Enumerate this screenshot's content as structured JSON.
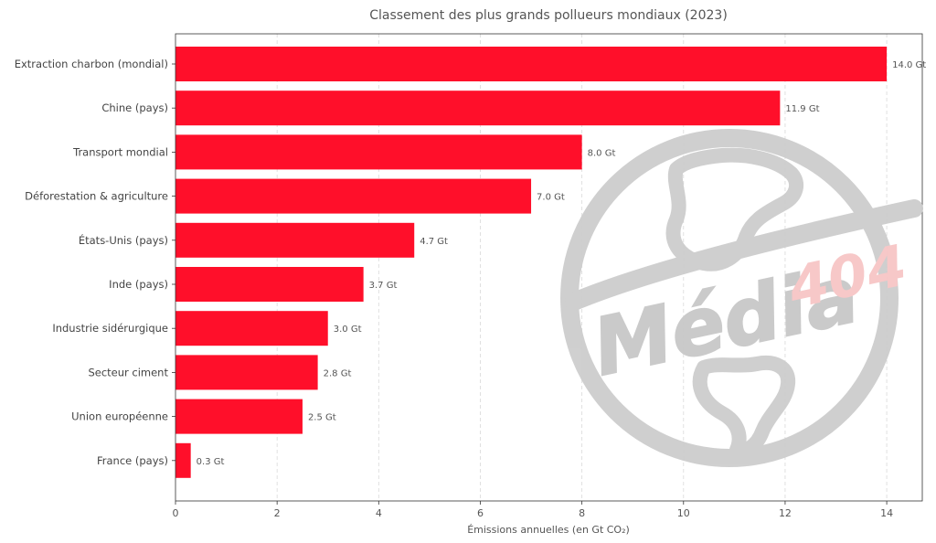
{
  "chart_data": {
    "type": "bar",
    "orientation": "horizontal",
    "title": "Classement des plus grands pollueurs mondiaux (2023)",
    "xlabel": "Émissions annuelles (en Gt CO₂)",
    "ylabel": "",
    "xlim": [
      0,
      14.7
    ],
    "xticks": [
      0,
      2,
      4,
      6,
      8,
      10,
      12,
      14
    ],
    "grid": "x-dashed",
    "bar_color": "#ff0f2a",
    "value_unit": "Gt",
    "categories": [
      "Extraction charbon (mondial)",
      "Chine (pays)",
      "Transport mondial",
      "Déforestation & agriculture",
      "États-Unis (pays)",
      "Inde (pays)",
      "Industrie sidérurgique",
      "Secteur ciment",
      "Union européenne",
      "France (pays)"
    ],
    "values": [
      14.0,
      11.9,
      8.0,
      7.0,
      4.7,
      3.7,
      3.0,
      2.8,
      2.5,
      0.3
    ],
    "value_labels": [
      "14.0 Gt",
      "11.9 Gt",
      "8.0 Gt",
      "7.0 Gt",
      "4.7 Gt",
      "3.7 Gt",
      "3.0 Gt",
      "2.8 Gt",
      "2.5 Gt",
      "0.3 Gt"
    ]
  },
  "watermark": {
    "text_main": "Média",
    "text_accent": "404",
    "main_color": "#c8c8c8",
    "accent_color": "#f7c6c6"
  }
}
